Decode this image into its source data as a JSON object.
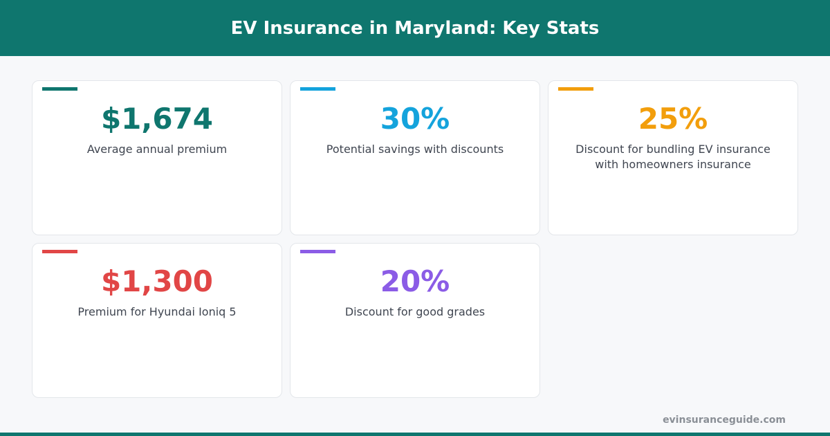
{
  "header": {
    "title": "EV Insurance in Maryland: Key Stats",
    "color": "#0f766e"
  },
  "cards": [
    {
      "value": "$1,674",
      "label": "Average annual premium",
      "color": "#0f766e"
    },
    {
      "value": "30%",
      "label": "Potential savings with discounts",
      "color": "#14a3dc"
    },
    {
      "value": "25%",
      "label": "Discount for bundling EV insurance with homeowners insurance",
      "color": "#f29e0c"
    },
    {
      "value": "$1,300",
      "label": "Premium for Hyundai Ioniq 5",
      "color": "#e14646"
    },
    {
      "value": "20%",
      "label": "Discount for good grades",
      "color": "#8b5ce6"
    }
  ],
  "footer": {
    "source": "evinsuranceguide.com"
  }
}
